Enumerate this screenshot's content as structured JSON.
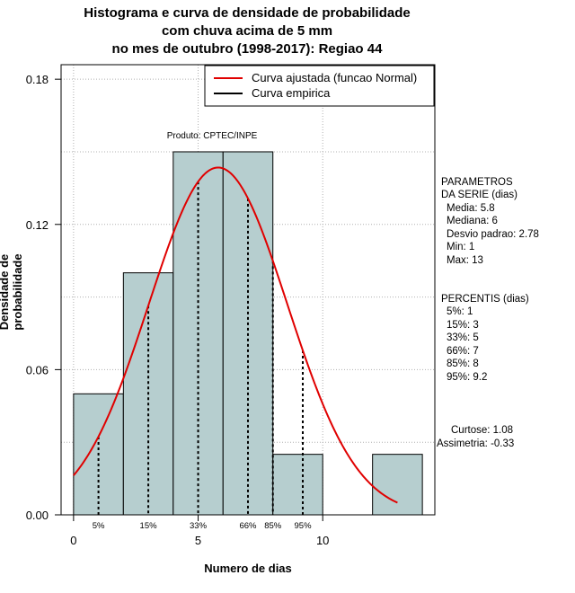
{
  "title": {
    "line1": "Histograma e curva de densidade de probabilidade",
    "line2": "com chuva acima de 5 mm",
    "line3": "no mes de outubro (1998-2017): Regiao 44"
  },
  "product_label": "Produto: CPTEC/INPE",
  "legend": {
    "fitted": "Curva ajustada (funcao Normal)",
    "empirical": "Curva empirica"
  },
  "colors": {
    "bar_fill": "#b6cecf",
    "fitted_curve": "#e00000",
    "empirical_curve": "#000000",
    "grid": "#b0b0b0"
  },
  "params": {
    "header1": "PARAMETROS",
    "header2": "DA SERIE (dias)",
    "media": "Media: 5.8",
    "mediana": "Mediana: 6",
    "desvio": "Desvio padrao: 2.78",
    "min": "Min: 1",
    "max": "Max: 13"
  },
  "percentis": {
    "header": "PERCENTIS (dias)",
    "items": [
      "5%: 1",
      "15%: 3",
      "33%: 5",
      "66%: 7",
      "85%: 8",
      "95%: 9.2"
    ]
  },
  "shape": {
    "curtose": "Curtose: 1.08",
    "assimetria": "Assimetria: -0.33"
  },
  "chart_data": {
    "type": "bar",
    "title": "Histograma e curva de densidade de probabilidade com chuva acima de 5 mm no mes de outubro (1998-2017): Regiao 44",
    "xlabel": "Numero de dias",
    "ylabel": "Densidade de probabilidade",
    "xlim": [
      -0.5,
      14.5
    ],
    "ylim": [
      0,
      0.186
    ],
    "xticks": [
      0,
      5,
      10
    ],
    "yticks": [
      0.0,
      0.06,
      0.12,
      0.18
    ],
    "ytick_labels": [
      "0.00",
      "0.06",
      "0.12",
      "0.18"
    ],
    "grid": true,
    "legend_position": "top-right",
    "bins": [
      {
        "x0": 0,
        "x1": 2,
        "density": 0.05
      },
      {
        "x0": 2,
        "x1": 4,
        "density": 0.1
      },
      {
        "x0": 4,
        "x1": 6,
        "density": 0.15
      },
      {
        "x0": 6,
        "x1": 8,
        "density": 0.15
      },
      {
        "x0": 8,
        "x1": 10,
        "density": 0.025
      },
      {
        "x0": 10,
        "x1": 12,
        "density": 0
      },
      {
        "x0": 12,
        "x1": 14,
        "density": 0.025
      }
    ],
    "fitted_normal": {
      "mean": 5.8,
      "sd": 2.78,
      "x_range": [
        0,
        13
      ]
    },
    "percentile_marks": [
      {
        "label": "5%",
        "x": 1
      },
      {
        "label": "15%",
        "x": 3
      },
      {
        "label": "33%",
        "x": 5
      },
      {
        "label": "66%",
        "x": 7
      },
      {
        "label": "85%",
        "x": 8
      },
      {
        "label": "95%",
        "x": 9.2
      }
    ]
  }
}
